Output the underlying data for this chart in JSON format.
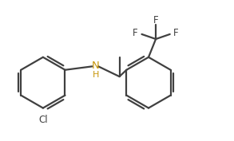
{
  "bg_color": "#ffffff",
  "bond_color": "#404040",
  "N_color": "#c8960a",
  "atom_color": "#404040",
  "lw": 1.6,
  "figsize": [
    2.93,
    1.77
  ],
  "dpi": 100,
  "xlim": [
    0.2,
    9.8
  ],
  "ylim": [
    0.5,
    6.2
  ]
}
